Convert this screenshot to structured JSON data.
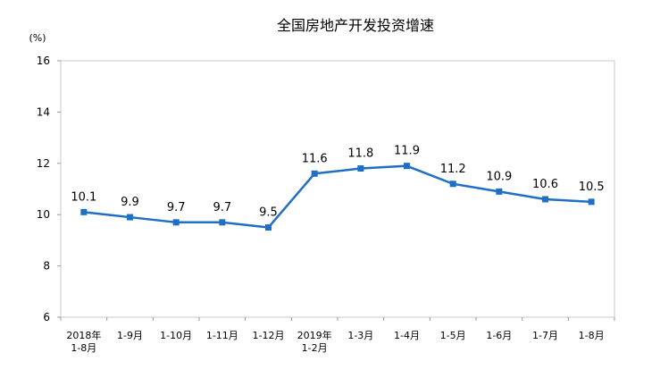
{
  "chart_data": {
    "type": "line",
    "title": "全国房地产开发投资增速",
    "unit_label": "(%)",
    "categories": [
      [
        "2018年",
        "1-8月"
      ],
      [
        "1-9月"
      ],
      [
        "1-10月"
      ],
      [
        "1-11月"
      ],
      [
        "1-12月"
      ],
      [
        "2019年",
        "1-2月"
      ],
      [
        "1-3月"
      ],
      [
        "1-4月"
      ],
      [
        "1-5月"
      ],
      [
        "1-6月"
      ],
      [
        "1-7月"
      ],
      [
        "1-8月"
      ]
    ],
    "series": [
      {
        "values": [
          10.1,
          9.9,
          9.7,
          9.7,
          9.5,
          11.6,
          11.8,
          11.9,
          11.2,
          10.9,
          10.6,
          10.5
        ],
        "color": "#1F6FC4"
      }
    ],
    "ylim": [
      6,
      16
    ],
    "yticks": [
      6,
      8,
      10,
      12,
      14,
      16
    ],
    "grid": false,
    "legend": "none"
  }
}
